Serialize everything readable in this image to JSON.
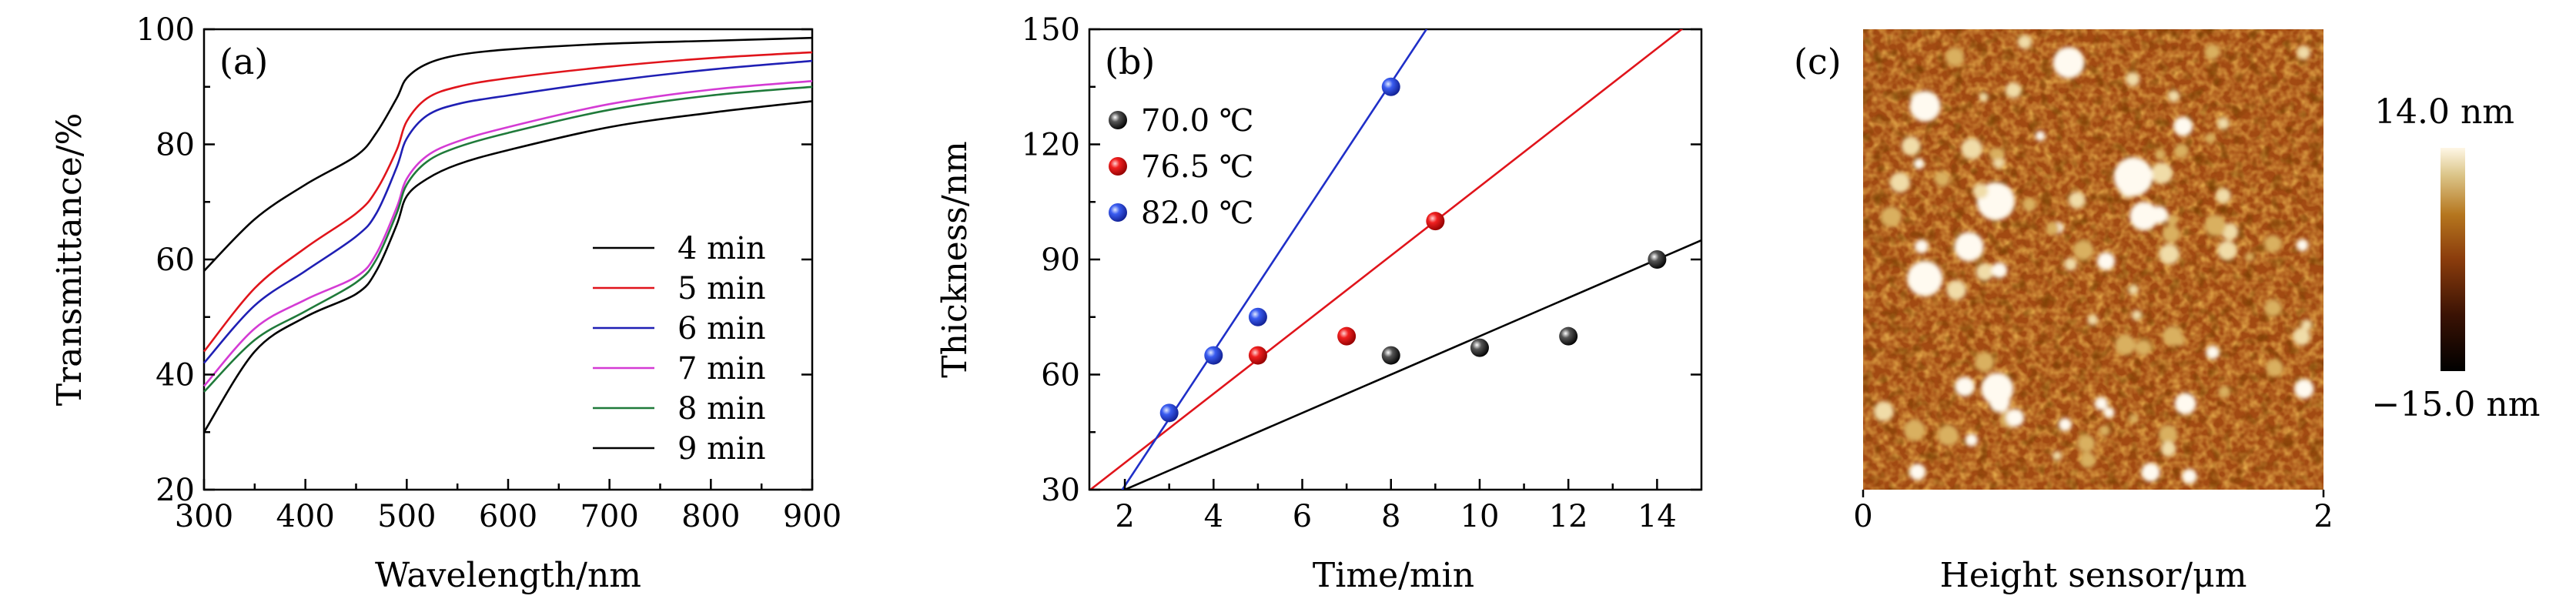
{
  "chart_data": [
    {
      "type": "line",
      "panel_label": "(a)",
      "xlabel": "Wavelength/nm",
      "ylabel": "Transmittance/%",
      "xlim": [
        300,
        900
      ],
      "ylim": [
        20,
        100
      ],
      "xticks": [
        300,
        400,
        500,
        600,
        700,
        800,
        900
      ],
      "yticks": [
        20,
        40,
        60,
        80,
        100
      ],
      "legend_position": "bottom-right",
      "x": [
        300,
        350,
        400,
        450,
        470,
        490,
        500,
        520,
        550,
        600,
        700,
        800,
        900
      ],
      "series": [
        {
          "name": "4 min",
          "color": "#000000",
          "values": [
            58,
            67,
            73,
            78,
            82,
            88,
            91.5,
            94,
            95.5,
            96.5,
            97.5,
            98,
            98.5
          ]
        },
        {
          "name": "5 min",
          "color": "#e0141b",
          "values": [
            44,
            55,
            62,
            68,
            72,
            79,
            84,
            88,
            90,
            91.5,
            93.5,
            95,
            96
          ]
        },
        {
          "name": "6 min",
          "color": "#1f1fb4",
          "values": [
            42,
            52,
            58,
            64,
            68,
            76,
            81,
            85,
            87,
            88.5,
            91,
            93,
            94.5
          ]
        },
        {
          "name": "7 min",
          "color": "#d43bd4",
          "values": [
            38,
            48,
            53,
            57,
            61,
            69,
            74,
            78,
            80.5,
            83,
            87,
            89.5,
            91
          ]
        },
        {
          "name": "8 min",
          "color": "#1f7a3a",
          "values": [
            37,
            46,
            51,
            56,
            60,
            68,
            73,
            77,
            79.5,
            82,
            86,
            88.5,
            90
          ]
        },
        {
          "name": "9 min",
          "color": "#000000",
          "values": [
            30,
            44,
            50,
            54,
            58,
            66,
            71,
            74,
            76.5,
            79,
            83,
            85.5,
            87.5
          ]
        }
      ]
    },
    {
      "type": "scatter",
      "panel_label": "(b)",
      "xlabel": "Time/min",
      "ylabel": "Thickness/nm",
      "xlim": [
        1.2,
        15
      ],
      "ylim": [
        30,
        150
      ],
      "xticks": [
        2,
        4,
        6,
        8,
        10,
        12,
        14
      ],
      "yticks": [
        30,
        60,
        90,
        120,
        150
      ],
      "legend_position": "top-left",
      "series": [
        {
          "name": "70.0 ℃",
          "color": "#111111",
          "x": [
            8,
            10,
            12,
            14
          ],
          "y": [
            65,
            67,
            70,
            90
          ],
          "fit": {
            "slope": 5.0,
            "intercept": 20
          }
        },
        {
          "name": "76.5 ℃",
          "color": "#e0141b",
          "x": [
            5,
            7,
            9
          ],
          "y": [
            65,
            70,
            100
          ],
          "fit": {
            "slope": 9.0,
            "intercept": 19
          }
        },
        {
          "name": "82.0 ℃",
          "color": "#2a4fe0",
          "x": [
            3,
            4,
            5,
            8
          ],
          "y": [
            50,
            65,
            75,
            135
          ],
          "fit": {
            "slope": 17.5,
            "intercept": -4
          }
        }
      ]
    },
    {
      "type": "heatmap",
      "panel_label": "(c)",
      "xlabel": "Height sensor/μm",
      "xlim": [
        0,
        2
      ],
      "xticks": [
        0,
        2
      ],
      "colorbar": {
        "max_label": "14.0 nm",
        "min_label": "−15.0 nm",
        "max": 14.0,
        "min": -15.0
      },
      "colors": {
        "low": "#000000",
        "mid": "#a0460f",
        "high": "#fff7e6"
      }
    }
  ]
}
